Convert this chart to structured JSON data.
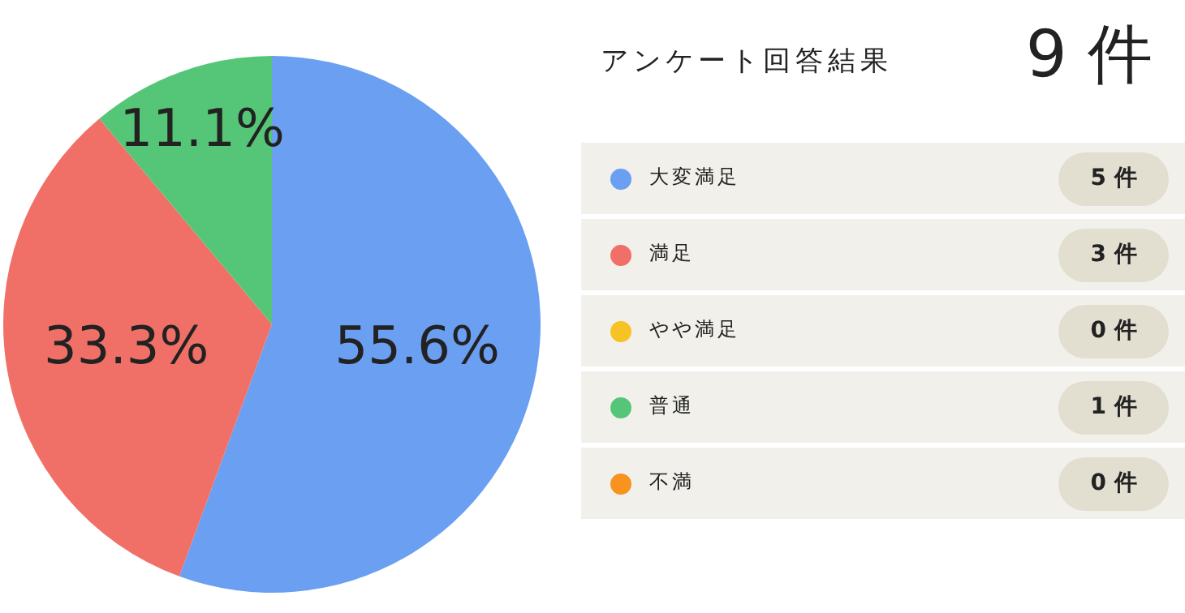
{
  "chart_data": {
    "type": "pie",
    "title": "アンケート回答結果",
    "categories": [
      "大変満足",
      "満足",
      "やや満足",
      "普通",
      "不満"
    ],
    "values": [
      55.6,
      33.3,
      0,
      11.1,
      0
    ],
    "colors": [
      "#6a9ff2",
      "#f07068",
      "#f6c325",
      "#55c677",
      "#f7931e"
    ],
    "value_labels": [
      "55.6%",
      "33.3%",
      null,
      "11.1%",
      null
    ],
    "annotations": [
      "9 件",
      {
        "text": "5 件",
        "x": "大変満足"
      },
      {
        "text": "3 件",
        "x": "満足"
      },
      {
        "text": "0 件",
        "x": "やや満足"
      },
      {
        "text": "1 件",
        "x": "普通"
      },
      {
        "text": "0 件",
        "x": "不満"
      }
    ],
    "legend": "right"
  }
}
